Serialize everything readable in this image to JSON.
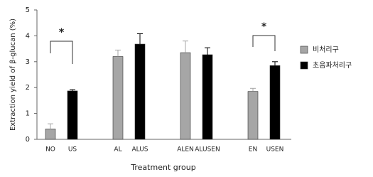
{
  "chart_data": {
    "type": "bar",
    "y_label": "Extraction yield of β-glucan  (%)",
    "x_label": "Treatment group",
    "categories": [
      "NO",
      "US",
      "AL",
      "ALUS",
      "ALEN",
      "ALUSEN",
      "EN",
      "USEN"
    ],
    "series": [
      {
        "name": "비처리구",
        "color": "#a6a6a6",
        "values": [
          0.4,
          null,
          3.2,
          null,
          3.35,
          null,
          1.85,
          null
        ],
        "errors": [
          0.2,
          null,
          0.25,
          null,
          0.45,
          null,
          0.12,
          null
        ]
      },
      {
        "name": "초음파처리구",
        "color": "#000000",
        "values": [
          null,
          1.87,
          null,
          3.68,
          null,
          3.27,
          null,
          2.85
        ],
        "errors": [
          null,
          0.05,
          null,
          0.4,
          null,
          0.27,
          null,
          0.15
        ]
      }
    ],
    "ylim": [
      0,
      5
    ],
    "yticks": [
      0,
      1,
      2,
      3,
      4,
      5
    ],
    "annotations": [
      "*",
      "*"
    ],
    "legend": "right"
  }
}
